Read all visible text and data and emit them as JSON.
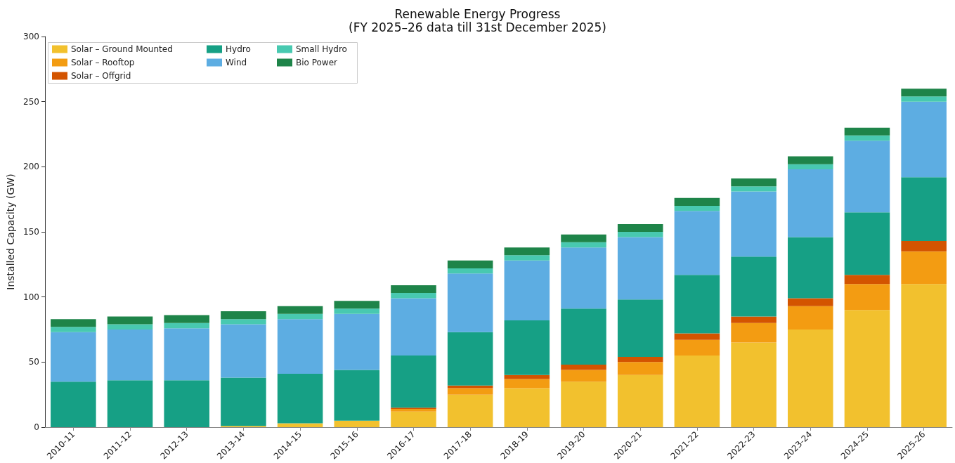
{
  "chart_data": {
    "type": "bar",
    "title": "Renewable Energy Progress",
    "subtitle": "(FY 2025–26 data till 31st December 2025)",
    "ylabel": "Installed Capacity (GW)",
    "categories": [
      "2010-11",
      "2011-12",
      "2012-13",
      "2013-14",
      "2014-15",
      "2015-16",
      "2016-17",
      "2017-18",
      "2018-19",
      "2019-20",
      "2020-21",
      "2021-22",
      "2022-23",
      "2023-24",
      "2024-25",
      "2025-26"
    ],
    "stacked": true,
    "ylim": [
      0,
      300
    ],
    "yticks": [
      0,
      50,
      100,
      150,
      200,
      250,
      300
    ],
    "grid": false,
    "legend": "top left",
    "series": [
      {
        "name": "Solar – Ground Mounted",
        "color": "#f2c12e",
        "values": [
          0,
          0,
          0,
          1,
          3,
          5,
          12,
          25,
          30,
          35,
          40,
          55,
          65,
          75,
          90,
          110
        ]
      },
      {
        "name": "Solar – Rooftop",
        "color": "#f39c12",
        "values": [
          0,
          0,
          0,
          0,
          0,
          0,
          2,
          5,
          7,
          9,
          10,
          12,
          15,
          18,
          20,
          25
        ]
      },
      {
        "name": "Solar – Offgrid",
        "color": "#d35400",
        "values": [
          0,
          0,
          0,
          0,
          0,
          0,
          1,
          2,
          3,
          4,
          4,
          5,
          5,
          6,
          7,
          8
        ]
      },
      {
        "name": "Hydro",
        "color": "#16a085",
        "values": [
          35,
          36,
          36,
          37,
          38,
          39,
          40,
          41,
          42,
          43,
          44,
          45,
          46,
          47,
          48,
          49
        ]
      },
      {
        "name": "Wind",
        "color": "#5dade2",
        "values": [
          38,
          39,
          40,
          41,
          42,
          43,
          44,
          45,
          46,
          47,
          48,
          49,
          50,
          52,
          55,
          58
        ]
      },
      {
        "name": "Small Hydro",
        "color": "#48c9b0",
        "values": [
          4,
          4,
          4,
          4,
          4,
          4,
          4,
          4,
          4,
          4,
          4,
          4,
          4,
          4,
          4,
          4
        ]
      },
      {
        "name": "Bio Power",
        "color": "#1e8449",
        "values": [
          6,
          6,
          6,
          6,
          6,
          6,
          6,
          6,
          6,
          6,
          6,
          6,
          6,
          6,
          6,
          6
        ]
      }
    ]
  }
}
